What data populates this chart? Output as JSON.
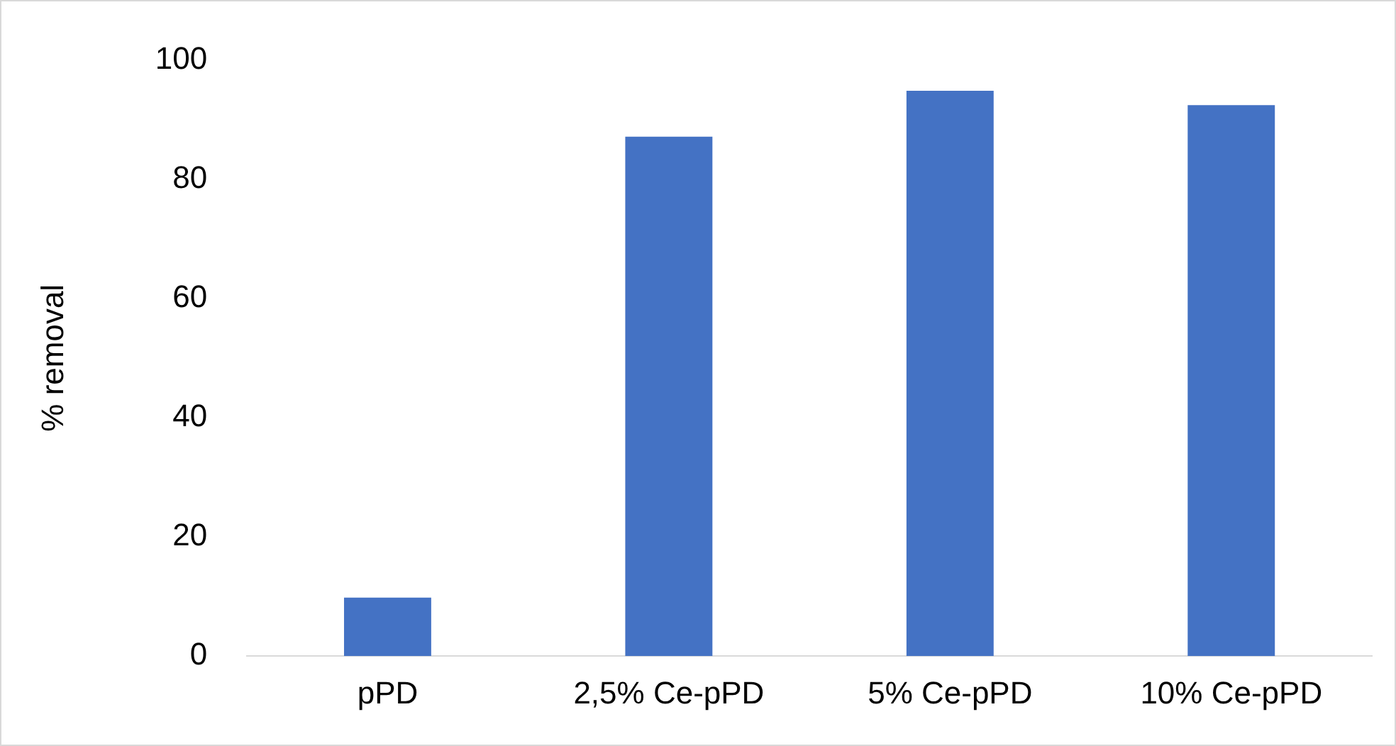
{
  "chart_data": {
    "type": "bar",
    "ylabel": "% removal",
    "categories": [
      "pPD",
      "2,5% Ce-pPD",
      "5% Ce-pPD",
      "10% Ce-pPD"
    ],
    "values": [
      9.8,
      87.1,
      94.8,
      92.4
    ],
    "color": "#4472c4",
    "ylim": [
      0,
      100
    ],
    "yticks": [
      0,
      20,
      40,
      60,
      80,
      100
    ],
    "grid": false,
    "legend": false
  }
}
